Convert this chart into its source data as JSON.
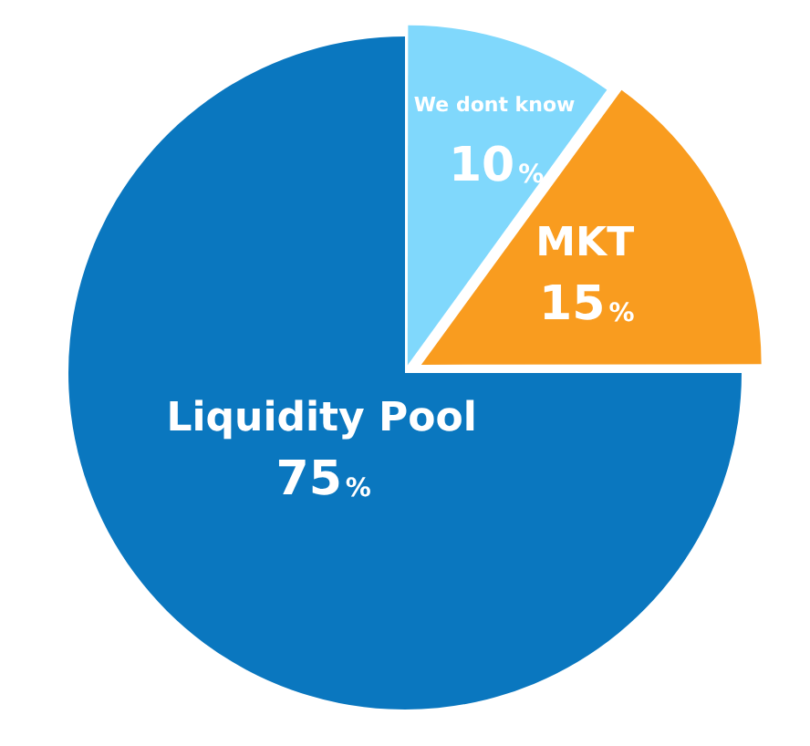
{
  "chart_data": {
    "type": "pie",
    "categories": [
      "We dont know",
      "MKT",
      "Liquidity Pool"
    ],
    "values": [
      10,
      15,
      75
    ],
    "colors": [
      "#80d8fc",
      "#f99c1f",
      "#0a77bf"
    ],
    "value_labels": [
      "10%",
      "15%",
      "75%"
    ],
    "legend": false
  }
}
